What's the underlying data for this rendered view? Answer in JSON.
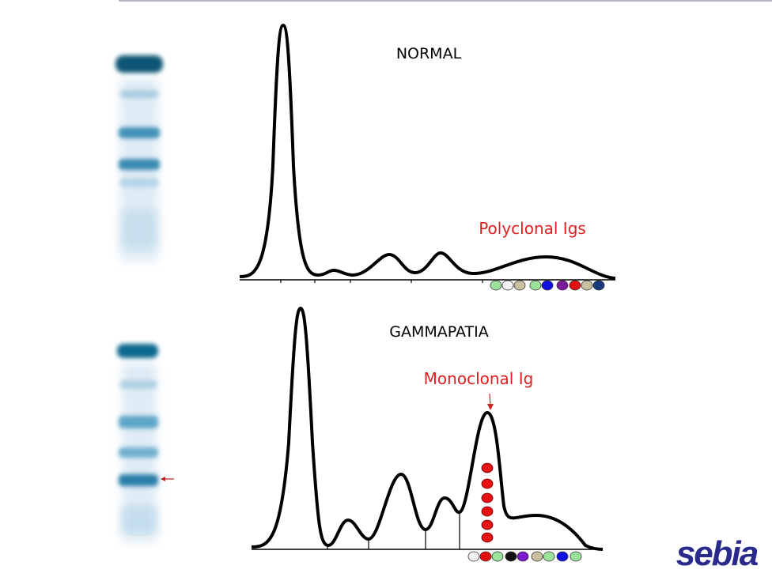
{
  "normal": {
    "title": "NORMAL",
    "annotation": "Polyclonal Igs"
  },
  "gammapathy": {
    "title": "GAMMAPATIA",
    "annotation": "Monoclonal Ig"
  },
  "logo": "sebia"
}
